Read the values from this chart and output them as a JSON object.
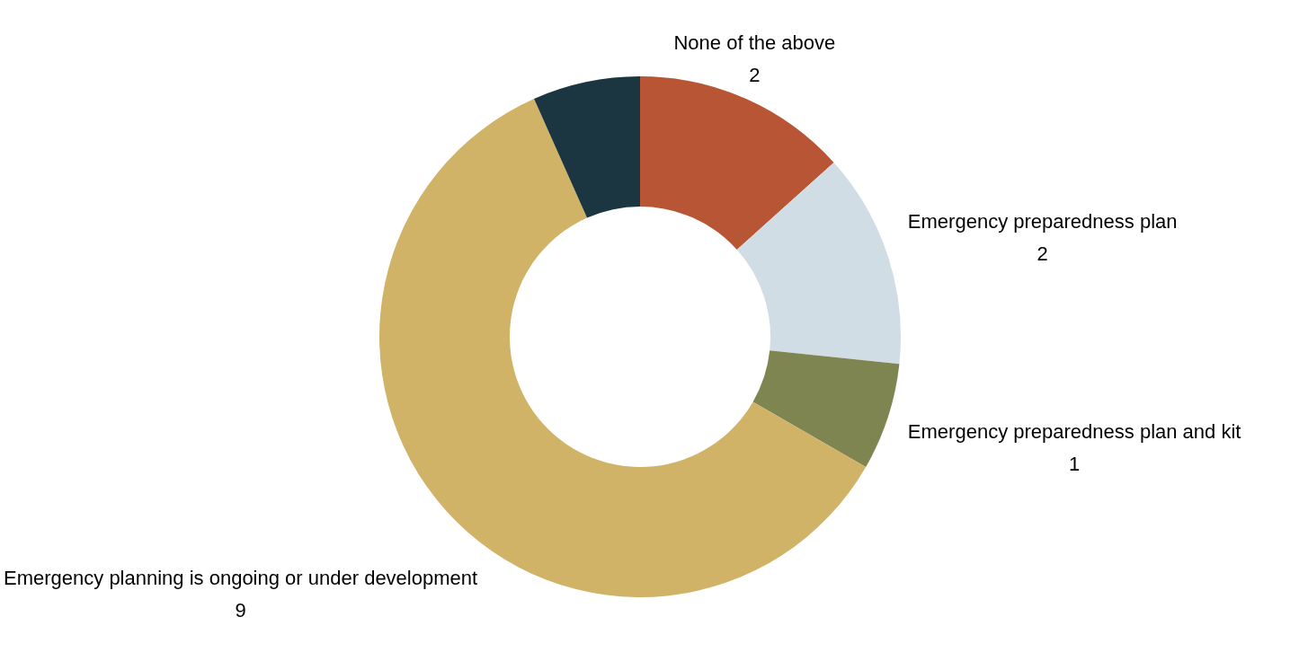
{
  "chart_data": {
    "type": "donut",
    "categories": [
      "None of the above",
      "Emergency preparedness plan",
      "Emergency preparedness plan and kit",
      "Emergency planning is ongoing or under development",
      null
    ],
    "values": [
      2,
      2,
      1,
      9,
      1
    ],
    "colors": [
      "#b85535",
      "#d0dde4",
      "#7f8550",
      "#d1b367",
      "#1b3541"
    ],
    "value_labels": [
      "2",
      "2",
      "1",
      "9",
      null
    ],
    "legend": false
  }
}
